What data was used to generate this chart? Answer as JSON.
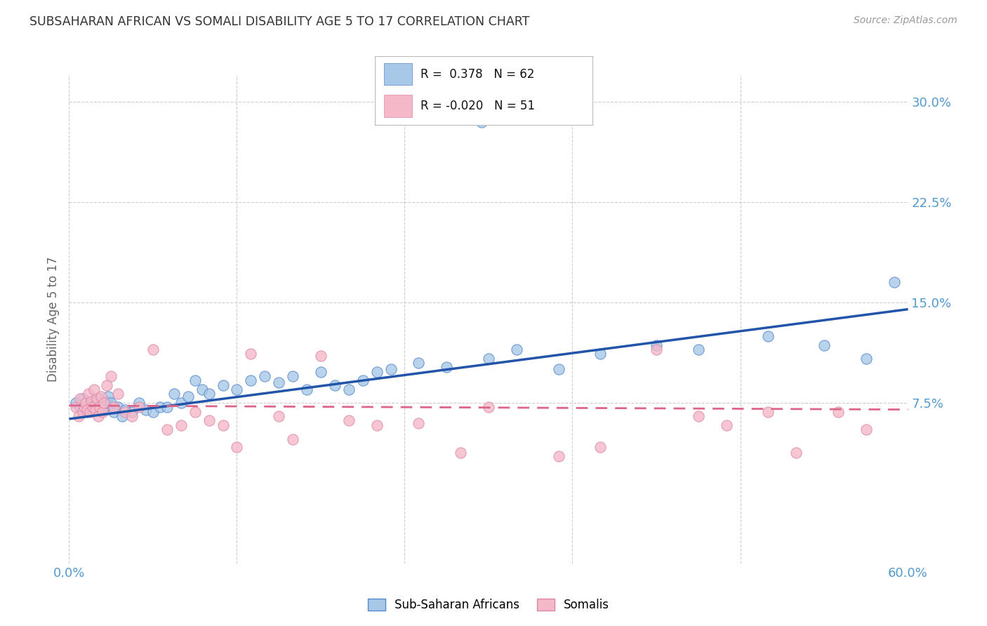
{
  "title": "SUBSAHARAN AFRICAN VS SOMALI DISABILITY AGE 5 TO 17 CORRELATION CHART",
  "source": "Source: ZipAtlas.com",
  "ylabel": "Disability Age 5 to 17",
  "xlim": [
    0.0,
    0.6
  ],
  "ylim": [
    -0.045,
    0.32
  ],
  "yticks_right": [
    0.075,
    0.15,
    0.225,
    0.3
  ],
  "ytick_labels_right": [
    "7.5%",
    "15.0%",
    "22.5%",
    "30.0%"
  ],
  "blue_R": 0.378,
  "blue_N": 62,
  "pink_R": -0.02,
  "pink_N": 51,
  "blue_color": "#a8c8e8",
  "pink_color": "#f4b8c8",
  "blue_edge_color": "#5588cc",
  "pink_edge_color": "#dd88aa",
  "blue_line_color": "#2255aa",
  "pink_line_color": "#dd6688",
  "grid_color": "#cccccc",
  "background_color": "#ffffff",
  "title_color": "#333333",
  "axis_label_color": "#5599cc",
  "blue_scatter_x": [
    0.295,
    0.005,
    0.008,
    0.01,
    0.012,
    0.013,
    0.015,
    0.016,
    0.017,
    0.018,
    0.019,
    0.02,
    0.021,
    0.022,
    0.023,
    0.024,
    0.025,
    0.026,
    0.027,
    0.028,
    0.03,
    0.032,
    0.035,
    0.038,
    0.04,
    0.045,
    0.05,
    0.055,
    0.06,
    0.065,
    0.07,
    0.075,
    0.08,
    0.085,
    0.09,
    0.095,
    0.1,
    0.11,
    0.12,
    0.13,
    0.14,
    0.15,
    0.16,
    0.17,
    0.18,
    0.19,
    0.2,
    0.21,
    0.22,
    0.23,
    0.25,
    0.27,
    0.3,
    0.32,
    0.35,
    0.38,
    0.42,
    0.45,
    0.5,
    0.54,
    0.57,
    0.59
  ],
  "blue_scatter_y": [
    0.285,
    0.075,
    0.072,
    0.078,
    0.07,
    0.068,
    0.074,
    0.072,
    0.076,
    0.073,
    0.07,
    0.075,
    0.072,
    0.078,
    0.074,
    0.07,
    0.072,
    0.075,
    0.076,
    0.08,
    0.075,
    0.068,
    0.072,
    0.065,
    0.07,
    0.068,
    0.075,
    0.07,
    0.068,
    0.072,
    0.072,
    0.082,
    0.075,
    0.08,
    0.092,
    0.085,
    0.082,
    0.088,
    0.085,
    0.092,
    0.095,
    0.09,
    0.095,
    0.085,
    0.098,
    0.088,
    0.085,
    0.092,
    0.098,
    0.1,
    0.105,
    0.102,
    0.108,
    0.115,
    0.1,
    0.112,
    0.118,
    0.115,
    0.125,
    0.118,
    0.108,
    0.165
  ],
  "pink_scatter_x": [
    0.005,
    0.007,
    0.008,
    0.01,
    0.011,
    0.012,
    0.013,
    0.014,
    0.015,
    0.016,
    0.017,
    0.018,
    0.019,
    0.02,
    0.021,
    0.022,
    0.023,
    0.024,
    0.025,
    0.027,
    0.03,
    0.032,
    0.035,
    0.04,
    0.045,
    0.05,
    0.06,
    0.07,
    0.08,
    0.09,
    0.1,
    0.11,
    0.12,
    0.13,
    0.15,
    0.16,
    0.18,
    0.2,
    0.22,
    0.25,
    0.28,
    0.3,
    0.35,
    0.38,
    0.42,
    0.45,
    0.47,
    0.5,
    0.52,
    0.55,
    0.57
  ],
  "pink_scatter_y": [
    0.072,
    0.065,
    0.078,
    0.068,
    0.072,
    0.075,
    0.07,
    0.082,
    0.068,
    0.076,
    0.072,
    0.085,
    0.07,
    0.078,
    0.065,
    0.072,
    0.08,
    0.068,
    0.075,
    0.088,
    0.095,
    0.072,
    0.082,
    0.068,
    0.065,
    0.072,
    0.115,
    0.055,
    0.058,
    0.068,
    0.062,
    0.058,
    0.042,
    0.112,
    0.065,
    0.048,
    0.11,
    0.062,
    0.058,
    0.06,
    0.038,
    0.072,
    0.035,
    0.042,
    0.115,
    0.065,
    0.058,
    0.068,
    0.038,
    0.068,
    0.055
  ],
  "blue_line_x0": 0.0,
  "blue_line_y0": 0.063,
  "blue_line_x1": 0.6,
  "blue_line_y1": 0.145,
  "pink_line_x0": 0.0,
  "pink_line_y0": 0.073,
  "pink_line_x1": 0.6,
  "pink_line_y1": 0.07
}
